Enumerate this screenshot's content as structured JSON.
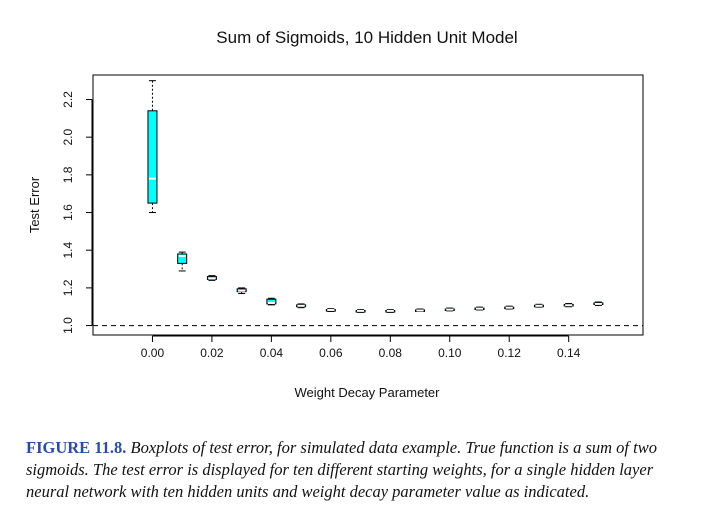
{
  "chart_data": {
    "type": "box",
    "title": "Sum of Sigmoids, 10 Hidden Unit Model",
    "xlabel": "Weight Decay Parameter",
    "ylabel": "Test Error",
    "xlim": [
      -0.02,
      0.165
    ],
    "ylim": [
      0.95,
      2.33
    ],
    "xticks": [
      0.0,
      0.02,
      0.04,
      0.06,
      0.08,
      0.1,
      0.12,
      0.14
    ],
    "xtick_labels": [
      "0.00",
      "0.02",
      "0.04",
      "0.06",
      "0.08",
      "0.10",
      "0.12",
      "0.14"
    ],
    "yticks": [
      1.0,
      1.2,
      1.4,
      1.6,
      1.8,
      2.0,
      2.2
    ],
    "ytick_labels": [
      "1.0",
      "1.2",
      "1.4",
      "1.6",
      "1.8",
      "2.0",
      "2.2"
    ],
    "reference_line": {
      "y": 1.0,
      "style": "dashed"
    },
    "box_fill": "#00ffff",
    "median_color": "#ffffff",
    "boxes": [
      {
        "x": 0.0,
        "min": 1.6,
        "q1": 1.65,
        "median": 1.78,
        "q3": 2.14,
        "max": 2.3
      },
      {
        "x": 0.01,
        "min": 1.29,
        "q1": 1.33,
        "median": 1.37,
        "q3": 1.38,
        "max": 1.39
      },
      {
        "x": 0.02,
        "min": 1.24,
        "q1": 1.245,
        "median": 1.25,
        "q3": 1.26,
        "max": 1.265
      },
      {
        "x": 0.03,
        "min": 1.17,
        "q1": 1.18,
        "median": 1.185,
        "q3": 1.195,
        "max": 1.2
      },
      {
        "x": 0.04,
        "min": 1.11,
        "q1": 1.115,
        "median": 1.12,
        "q3": 1.14,
        "max": 1.145
      },
      {
        "x": 0.05,
        "min": 1.095,
        "q1": 1.1,
        "median": 1.105,
        "q3": 1.11,
        "max": 1.115
      },
      {
        "x": 0.06,
        "min": 1.075,
        "q1": 1.08,
        "median": 1.083,
        "q3": 1.085,
        "max": 1.09
      },
      {
        "x": 0.07,
        "min": 1.07,
        "q1": 1.075,
        "median": 1.078,
        "q3": 1.08,
        "max": 1.085
      },
      {
        "x": 0.08,
        "min": 1.07,
        "q1": 1.075,
        "median": 1.078,
        "q3": 1.08,
        "max": 1.085
      },
      {
        "x": 0.09,
        "min": 1.075,
        "q1": 1.078,
        "median": 1.08,
        "q3": 1.083,
        "max": 1.088
      },
      {
        "x": 0.1,
        "min": 1.078,
        "q1": 1.082,
        "median": 1.085,
        "q3": 1.088,
        "max": 1.093
      },
      {
        "x": 0.11,
        "min": 1.083,
        "q1": 1.087,
        "median": 1.09,
        "q3": 1.093,
        "max": 1.098
      },
      {
        "x": 0.12,
        "min": 1.088,
        "q1": 1.092,
        "median": 1.095,
        "q3": 1.098,
        "max": 1.103
      },
      {
        "x": 0.13,
        "min": 1.098,
        "q1": 1.102,
        "median": 1.105,
        "q3": 1.108,
        "max": 1.113
      },
      {
        "x": 0.14,
        "min": 1.1,
        "q1": 1.105,
        "median": 1.108,
        "q3": 1.112,
        "max": 1.117
      },
      {
        "x": 0.15,
        "min": 1.107,
        "q1": 1.112,
        "median": 1.115,
        "q3": 1.12,
        "max": 1.125
      }
    ],
    "grid": false,
    "legend": "none"
  },
  "caption": {
    "label": "FIGURE 11.8.",
    "text": " Boxplots of test error, for simulated data example. True function is a sum of two sigmoids. The test error is displayed for ten different starting weights, for a single hidden layer neural network with ten hidden units and weight decay parameter value as indicated."
  }
}
